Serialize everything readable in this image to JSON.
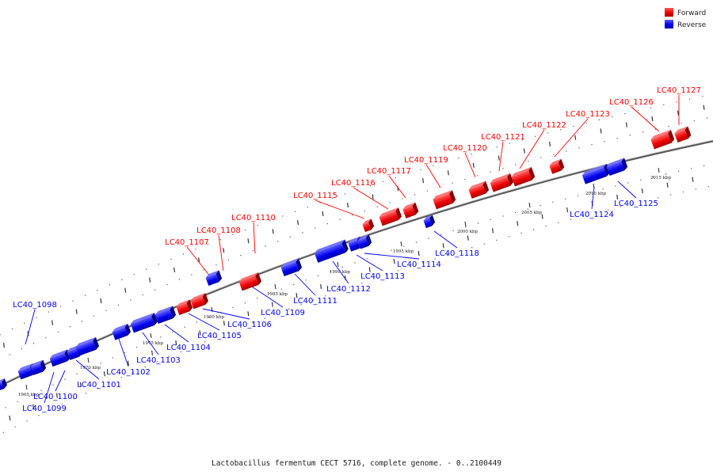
{
  "legend": {
    "forward": {
      "label": "Forward",
      "color": "#ff0000"
    },
    "reverse": {
      "label": "Reverse",
      "color": "#0000ff"
    }
  },
  "caption": "Lactobacillus fermentum CECT 5716, complete genome. - 0..2100449",
  "ticks": [
    {
      "label": "1965 kbp",
      "kbp": 1965
    },
    {
      "label": "1970 kbp",
      "kbp": 1970
    },
    {
      "label": "1975 kbp",
      "kbp": 1975
    },
    {
      "label": "1980 kbp",
      "kbp": 1980
    },
    {
      "label": "1985 kbp",
      "kbp": 1985
    },
    {
      "label": "1990 kbp",
      "kbp": 1990
    },
    {
      "label": "1995 kbp",
      "kbp": 1995
    },
    {
      "label": "2000 kbp",
      "kbp": 2000
    },
    {
      "label": "2005 kbp",
      "kbp": 2005
    },
    {
      "label": "2010 kbp",
      "kbp": 2010
    },
    {
      "label": "2015 kbp",
      "kbp": 2015
    }
  ],
  "genes": [
    {
      "label": "LC40_1098",
      "strand": "reverse"
    },
    {
      "label": "LC40_1099",
      "strand": "reverse"
    },
    {
      "label": "LC40_1100",
      "strand": "reverse"
    },
    {
      "label": "LC40_1101",
      "strand": "reverse"
    },
    {
      "label": "LC40_1102",
      "strand": "reverse"
    },
    {
      "label": "LC40_1103",
      "strand": "reverse"
    },
    {
      "label": "LC40_1104",
      "strand": "reverse"
    },
    {
      "label": "LC40_1105",
      "strand": "reverse"
    },
    {
      "label": "LC40_1106",
      "strand": "reverse"
    },
    {
      "label": "LC40_1107",
      "strand": "forward"
    },
    {
      "label": "LC40_1108",
      "strand": "forward"
    },
    {
      "label": "LC40_1109",
      "strand": "reverse"
    },
    {
      "label": "LC40_1110",
      "strand": "forward"
    },
    {
      "label": "LC40_1111",
      "strand": "reverse"
    },
    {
      "label": "LC40_1112",
      "strand": "reverse"
    },
    {
      "label": "LC40_1113",
      "strand": "reverse"
    },
    {
      "label": "LC40_1114",
      "strand": "reverse"
    },
    {
      "label": "LC40_1115",
      "strand": "forward"
    },
    {
      "label": "LC40_1116",
      "strand": "forward"
    },
    {
      "label": "LC40_1117",
      "strand": "forward"
    },
    {
      "label": "LC40_1118",
      "strand": "reverse"
    },
    {
      "label": "LC40_1119",
      "strand": "forward"
    },
    {
      "label": "LC40_1120",
      "strand": "forward"
    },
    {
      "label": "LC40_1121",
      "strand": "forward"
    },
    {
      "label": "LC40_1122",
      "strand": "forward"
    },
    {
      "label": "LC40_1123",
      "strand": "forward"
    },
    {
      "label": "LC40_1124",
      "strand": "reverse"
    },
    {
      "label": "LC40_1125",
      "strand": "reverse"
    },
    {
      "label": "LC40_1126",
      "strand": "forward"
    },
    {
      "label": "LC40_1127",
      "strand": "forward"
    }
  ]
}
